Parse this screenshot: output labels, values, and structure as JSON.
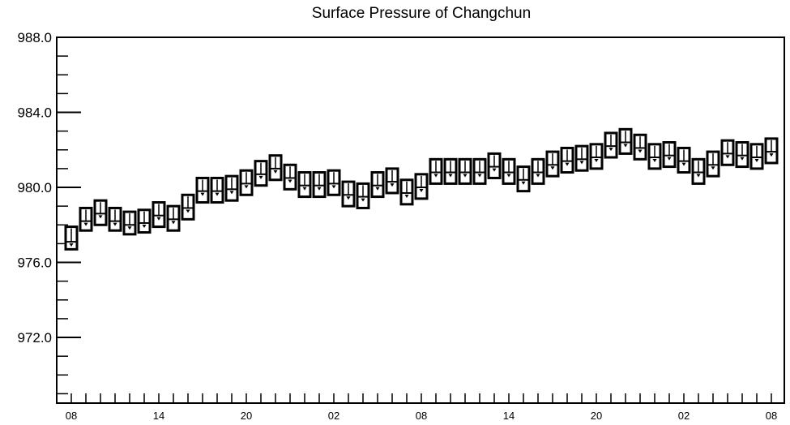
{
  "chart_data": {
    "type": "box",
    "title": "Surface Pressure of Changchun",
    "xlabel": "",
    "ylabel": "",
    "ylim": [
      968.5,
      988.0
    ],
    "y_ticks": [
      972.0,
      976.0,
      980.0,
      984.0,
      988.0
    ],
    "y_tick_labels": [
      "972.0",
      "976.0",
      "980.0",
      "984.0",
      "988.0"
    ],
    "x_tick_labels": [
      "08",
      "14",
      "20",
      "02",
      "08",
      "14",
      "20",
      "02",
      "08"
    ],
    "x_tick_positions": [
      0,
      6,
      12,
      18,
      24,
      30,
      36,
      42,
      48
    ],
    "grid": false,
    "series": [
      {
        "values": [
          977.1,
          978.2,
          978.6,
          978.2,
          978.0,
          978.1,
          978.5,
          978.3,
          978.9,
          979.8,
          979.8,
          979.9,
          980.2,
          980.7,
          981.0,
          980.5,
          980.1,
          980.1,
          980.2,
          979.6,
          979.5,
          980.1,
          980.3,
          979.7,
          980.0,
          980.8,
          980.8,
          980.8,
          980.8,
          981.1,
          980.8,
          980.4,
          980.8,
          981.2,
          981.4,
          981.5,
          981.6,
          982.2,
          982.4,
          982.1,
          981.6,
          981.7,
          981.4,
          980.8,
          981.2,
          981.8,
          981.7,
          981.6,
          981.9
        ],
        "box_low": [
          976.7,
          977.7,
          978.0,
          977.7,
          977.5,
          977.6,
          977.9,
          977.7,
          978.3,
          979.2,
          979.2,
          979.3,
          979.6,
          980.1,
          980.4,
          979.9,
          979.5,
          979.5,
          979.6,
          979.0,
          978.9,
          979.5,
          979.7,
          979.1,
          979.4,
          980.2,
          980.2,
          980.2,
          980.2,
          980.5,
          980.2,
          979.8,
          980.2,
          980.6,
          980.8,
          980.9,
          981.0,
          981.6,
          981.8,
          981.5,
          981.0,
          981.1,
          980.8,
          980.2,
          980.6,
          981.2,
          981.1,
          981.0,
          981.3
        ],
        "box_high": [
          977.9,
          978.9,
          979.3,
          978.9,
          978.7,
          978.8,
          979.2,
          979.0,
          979.6,
          980.5,
          980.5,
          980.6,
          980.9,
          981.4,
          981.7,
          981.2,
          980.8,
          980.8,
          980.9,
          980.3,
          980.2,
          980.8,
          981.0,
          980.4,
          980.7,
          981.5,
          981.5,
          981.5,
          981.5,
          981.8,
          981.5,
          981.1,
          981.5,
          981.9,
          982.1,
          982.2,
          982.3,
          982.9,
          983.1,
          982.8,
          982.3,
          982.4,
          982.1,
          981.5,
          981.9,
          982.5,
          982.4,
          982.3,
          982.6
        ]
      }
    ]
  }
}
